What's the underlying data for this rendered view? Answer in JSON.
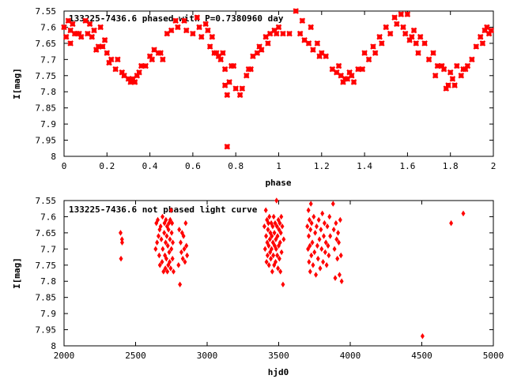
{
  "chart_data": [
    {
      "type": "scatter",
      "title": "133225-7436.6 phased with P=0.7380960 day",
      "xlabel": "phase",
      "ylabel": "I[mag]",
      "xlim": [
        0,
        2
      ],
      "ylim": [
        7.55,
        8
      ],
      "y_inverted": true,
      "marker": "star",
      "color": "#ff0000",
      "xticks": [
        0,
        0.2,
        0.4,
        0.6,
        0.8,
        1,
        1.2,
        1.4,
        1.6,
        1.8,
        2
      ],
      "xtick_labels": [
        "0",
        "0.2",
        "0.4",
        "0.6",
        "0.8",
        "1",
        "1.2",
        "1.4",
        "1.6",
        "1.8",
        "2"
      ],
      "yticks": [
        7.55,
        7.6,
        7.65,
        7.7,
        7.75,
        7.8,
        7.85,
        7.9,
        7.95,
        8
      ],
      "ytick_labels": [
        "7.55",
        "7.6",
        "7.65",
        "7.7",
        "7.75",
        "7.8",
        "7.85",
        "7.9",
        "7.95",
        "8"
      ],
      "points": [
        [
          0.0,
          7.6
        ],
        [
          0.01,
          7.63
        ],
        [
          0.02,
          7.58
        ],
        [
          0.03,
          7.61
        ],
        [
          0.03,
          7.65
        ],
        [
          0.04,
          7.59
        ],
        [
          0.05,
          7.62
        ],
        [
          0.06,
          7.62
        ],
        [
          0.07,
          7.62
        ],
        [
          0.08,
          7.63
        ],
        [
          0.1,
          7.58
        ],
        [
          0.11,
          7.62
        ],
        [
          0.12,
          7.59
        ],
        [
          0.13,
          7.63
        ],
        [
          0.14,
          7.61
        ],
        [
          0.15,
          7.67
        ],
        [
          0.16,
          7.66
        ],
        [
          0.17,
          7.6
        ],
        [
          0.18,
          7.66
        ],
        [
          0.19,
          7.64
        ],
        [
          0.2,
          7.68
        ],
        [
          0.21,
          7.71
        ],
        [
          0.22,
          7.7
        ],
        [
          0.24,
          7.73
        ],
        [
          0.25,
          7.7
        ],
        [
          0.27,
          7.74
        ],
        [
          0.28,
          7.75
        ],
        [
          0.3,
          7.76
        ],
        [
          0.31,
          7.77
        ],
        [
          0.32,
          7.76
        ],
        [
          0.33,
          7.77
        ],
        [
          0.34,
          7.75
        ],
        [
          0.35,
          7.74
        ],
        [
          0.36,
          7.72
        ],
        [
          0.38,
          7.72
        ],
        [
          0.4,
          7.69
        ],
        [
          0.41,
          7.7
        ],
        [
          0.42,
          7.67
        ],
        [
          0.44,
          7.68
        ],
        [
          0.45,
          7.68
        ],
        [
          0.46,
          7.7
        ],
        [
          0.48,
          7.62
        ],
        [
          0.5,
          7.61
        ],
        [
          0.52,
          7.58
        ],
        [
          0.53,
          7.6
        ],
        [
          0.56,
          7.58
        ],
        [
          0.57,
          7.61
        ],
        [
          0.6,
          7.62
        ],
        [
          0.62,
          7.57
        ],
        [
          0.63,
          7.6
        ],
        [
          0.64,
          7.63
        ],
        [
          0.66,
          7.59
        ],
        [
          0.67,
          7.61
        ],
        [
          0.68,
          7.66
        ],
        [
          0.69,
          7.63
        ],
        [
          0.7,
          7.68
        ],
        [
          0.71,
          7.68
        ],
        [
          0.72,
          7.69
        ],
        [
          0.73,
          7.7
        ],
        [
          0.74,
          7.68
        ],
        [
          0.75,
          7.73
        ],
        [
          0.75,
          7.78
        ],
        [
          0.76,
          7.81
        ],
        [
          0.76,
          7.97
        ],
        [
          0.77,
          7.77
        ],
        [
          0.78,
          7.72
        ],
        [
          0.79,
          7.72
        ],
        [
          0.8,
          7.79
        ],
        [
          0.82,
          7.81
        ],
        [
          0.83,
          7.79
        ],
        [
          0.85,
          7.75
        ],
        [
          0.86,
          7.73
        ],
        [
          0.87,
          7.73
        ],
        [
          0.88,
          7.69
        ],
        [
          0.9,
          7.68
        ],
        [
          0.91,
          7.66
        ],
        [
          0.92,
          7.67
        ],
        [
          0.94,
          7.63
        ],
        [
          0.95,
          7.65
        ],
        [
          0.96,
          7.62
        ],
        [
          0.98,
          7.61
        ],
        [
          0.99,
          7.62
        ],
        [
          1.0,
          7.6
        ],
        [
          1.02,
          7.62
        ],
        [
          1.05,
          7.62
        ],
        [
          1.08,
          7.55
        ],
        [
          1.1,
          7.62
        ],
        [
          1.11,
          7.58
        ],
        [
          1.12,
          7.64
        ],
        [
          1.14,
          7.65
        ],
        [
          1.15,
          7.6
        ],
        [
          1.16,
          7.67
        ],
        [
          1.18,
          7.65
        ],
        [
          1.19,
          7.69
        ],
        [
          1.2,
          7.68
        ],
        [
          1.22,
          7.69
        ],
        [
          1.25,
          7.73
        ],
        [
          1.27,
          7.74
        ],
        [
          1.28,
          7.72
        ],
        [
          1.29,
          7.75
        ],
        [
          1.3,
          7.77
        ],
        [
          1.31,
          7.76
        ],
        [
          1.32,
          7.76
        ],
        [
          1.33,
          7.74
        ],
        [
          1.34,
          7.75
        ],
        [
          1.35,
          7.77
        ],
        [
          1.37,
          7.73
        ],
        [
          1.39,
          7.73
        ],
        [
          1.4,
          7.68
        ],
        [
          1.42,
          7.7
        ],
        [
          1.44,
          7.66
        ],
        [
          1.45,
          7.68
        ],
        [
          1.47,
          7.63
        ],
        [
          1.48,
          7.65
        ],
        [
          1.5,
          7.6
        ],
        [
          1.52,
          7.62
        ],
        [
          1.54,
          7.57
        ],
        [
          1.55,
          7.59
        ],
        [
          1.57,
          7.56
        ],
        [
          1.58,
          7.6
        ],
        [
          1.59,
          7.62
        ],
        [
          1.6,
          7.56
        ],
        [
          1.61,
          7.64
        ],
        [
          1.62,
          7.63
        ],
        [
          1.63,
          7.61
        ],
        [
          1.64,
          7.65
        ],
        [
          1.65,
          7.68
        ],
        [
          1.66,
          7.63
        ],
        [
          1.68,
          7.65
        ],
        [
          1.7,
          7.7
        ],
        [
          1.72,
          7.68
        ],
        [
          1.73,
          7.75
        ],
        [
          1.74,
          7.72
        ],
        [
          1.76,
          7.72
        ],
        [
          1.77,
          7.73
        ],
        [
          1.78,
          7.79
        ],
        [
          1.79,
          7.78
        ],
        [
          1.8,
          7.74
        ],
        [
          1.81,
          7.76
        ],
        [
          1.82,
          7.78
        ],
        [
          1.83,
          7.72
        ],
        [
          1.85,
          7.75
        ],
        [
          1.86,
          7.73
        ],
        [
          1.87,
          7.73
        ],
        [
          1.88,
          7.72
        ],
        [
          1.9,
          7.7
        ],
        [
          1.92,
          7.66
        ],
        [
          1.94,
          7.63
        ],
        [
          1.95,
          7.65
        ],
        [
          1.96,
          7.61
        ],
        [
          1.97,
          7.6
        ],
        [
          1.98,
          7.62
        ],
        [
          1.99,
          7.61
        ]
      ]
    },
    {
      "type": "scatter",
      "title": "133225-7436.6 not phased light curve",
      "xlabel": "hjd0",
      "ylabel": "I[mag]",
      "xlim": [
        2000,
        5000
      ],
      "ylim": [
        7.55,
        8
      ],
      "y_inverted": true,
      "marker": "diamond",
      "color": "#ff0000",
      "xticks": [
        2000,
        2500,
        3000,
        3500,
        4000,
        4500,
        5000
      ],
      "xtick_labels": [
        "2000",
        "2500",
        "3000",
        "3500",
        "4000",
        "4500",
        "5000"
      ],
      "yticks": [
        7.55,
        7.6,
        7.65,
        7.7,
        7.75,
        7.8,
        7.85,
        7.9,
        7.95,
        8
      ],
      "ytick_labels": [
        "7.55",
        "7.6",
        "7.65",
        "7.7",
        "7.75",
        "7.8",
        "7.85",
        "7.9",
        "7.95",
        "8"
      ],
      "points": [
        [
          2395,
          7.65
        ],
        [
          2398,
          7.73
        ],
        [
          2405,
          7.67
        ],
        [
          2406,
          7.68
        ],
        [
          2640,
          7.7
        ],
        [
          2645,
          7.62
        ],
        [
          2650,
          7.68
        ],
        [
          2655,
          7.61
        ],
        [
          2660,
          7.66
        ],
        [
          2665,
          7.72
        ],
        [
          2668,
          7.64
        ],
        [
          2670,
          7.75
        ],
        [
          2675,
          7.63
        ],
        [
          2680,
          7.67
        ],
        [
          2685,
          7.74
        ],
        [
          2688,
          7.6
        ],
        [
          2690,
          7.7
        ],
        [
          2695,
          7.77
        ],
        [
          2700,
          7.65
        ],
        [
          2702,
          7.62
        ],
        [
          2705,
          7.72
        ],
        [
          2708,
          7.76
        ],
        [
          2710,
          7.68
        ],
        [
          2712,
          7.61
        ],
        [
          2715,
          7.73
        ],
        [
          2718,
          7.66
        ],
        [
          2720,
          7.63
        ],
        [
          2722,
          7.77
        ],
        [
          2725,
          7.69
        ],
        [
          2728,
          7.75
        ],
        [
          2730,
          7.64
        ],
        [
          2733,
          7.62
        ],
        [
          2735,
          7.71
        ],
        [
          2738,
          7.74
        ],
        [
          2740,
          7.67
        ],
        [
          2742,
          7.61
        ],
        [
          2745,
          7.76
        ],
        [
          2748,
          7.58
        ],
        [
          2750,
          7.7
        ],
        [
          2752,
          7.65
        ],
        [
          2755,
          7.62
        ],
        [
          2758,
          7.73
        ],
        [
          2760,
          7.68
        ],
        [
          2765,
          7.77
        ],
        [
          2800,
          7.75
        ],
        [
          2805,
          7.64
        ],
        [
          2810,
          7.81
        ],
        [
          2815,
          7.68
        ],
        [
          2820,
          7.71
        ],
        [
          2825,
          7.65
        ],
        [
          2830,
          7.73
        ],
        [
          2835,
          7.66
        ],
        [
          2840,
          7.7
        ],
        [
          2845,
          7.74
        ],
        [
          2850,
          7.62
        ],
        [
          2855,
          7.69
        ],
        [
          2860,
          7.72
        ],
        [
          3400,
          7.63
        ],
        [
          3405,
          7.7
        ],
        [
          3410,
          7.58
        ],
        [
          3412,
          7.66
        ],
        [
          3415,
          7.74
        ],
        [
          3418,
          7.61
        ],
        [
          3420,
          7.68
        ],
        [
          3422,
          7.72
        ],
        [
          3425,
          7.64
        ],
        [
          3428,
          7.62
        ],
        [
          3430,
          7.69
        ],
        [
          3432,
          7.75
        ],
        [
          3435,
          7.6
        ],
        [
          3438,
          7.67
        ],
        [
          3440,
          7.71
        ],
        [
          3442,
          7.65
        ],
        [
          3445,
          7.73
        ],
        [
          3448,
          7.62
        ],
        [
          3450,
          7.7
        ],
        [
          3452,
          7.66
        ],
        [
          3455,
          7.77
        ],
        [
          3458,
          7.63
        ],
        [
          3460,
          7.68
        ],
        [
          3462,
          7.72
        ],
        [
          3465,
          7.6
        ],
        [
          3468,
          7.75
        ],
        [
          3470,
          7.65
        ],
        [
          3472,
          7.69
        ],
        [
          3475,
          7.62
        ],
        [
          3478,
          7.74
        ],
        [
          3480,
          7.67
        ],
        [
          3482,
          7.7
        ],
        [
          3485,
          7.55
        ],
        [
          3488,
          7.63
        ],
        [
          3490,
          7.72
        ],
        [
          3492,
          7.66
        ],
        [
          3495,
          7.76
        ],
        [
          3498,
          7.61
        ],
        [
          3500,
          7.69
        ],
        [
          3502,
          7.64
        ],
        [
          3505,
          7.73
        ],
        [
          3508,
          7.62
        ],
        [
          3510,
          7.68
        ],
        [
          3512,
          7.77
        ],
        [
          3515,
          7.65
        ],
        [
          3518,
          7.6
        ],
        [
          3520,
          7.71
        ],
        [
          3525,
          7.63
        ],
        [
          3530,
          7.81
        ],
        [
          3535,
          7.67
        ],
        [
          3700,
          7.63
        ],
        [
          3705,
          7.7
        ],
        [
          3708,
          7.58
        ],
        [
          3710,
          7.66
        ],
        [
          3712,
          7.74
        ],
        [
          3715,
          7.61
        ],
        [
          3718,
          7.69
        ],
        [
          3720,
          7.77
        ],
        [
          3722,
          7.64
        ],
        [
          3725,
          7.56
        ],
        [
          3728,
          7.72
        ],
        [
          3730,
          7.62
        ],
        [
          3735,
          7.68
        ],
        [
          3740,
          7.75
        ],
        [
          3745,
          7.6
        ],
        [
          3750,
          7.71
        ],
        [
          3755,
          7.65
        ],
        [
          3760,
          7.78
        ],
        [
          3765,
          7.63
        ],
        [
          3770,
          7.69
        ],
        [
          3775,
          7.73
        ],
        [
          3780,
          7.61
        ],
        [
          3785,
          7.67
        ],
        [
          3790,
          7.76
        ],
        [
          3795,
          7.64
        ],
        [
          3800,
          7.7
        ],
        [
          3805,
          7.59
        ],
        [
          3810,
          7.74
        ],
        [
          3815,
          7.66
        ],
        [
          3820,
          7.62
        ],
        [
          3825,
          7.71
        ],
        [
          3830,
          7.68
        ],
        [
          3835,
          7.75
        ],
        [
          3840,
          7.63
        ],
        [
          3845,
          7.69
        ],
        [
          3850,
          7.72
        ],
        [
          3855,
          7.6
        ],
        [
          3860,
          7.66
        ],
        [
          3880,
          7.56
        ],
        [
          3885,
          7.64
        ],
        [
          3890,
          7.7
        ],
        [
          3895,
          7.79
        ],
        [
          3900,
          7.62
        ],
        [
          3905,
          7.67
        ],
        [
          3910,
          7.73
        ],
        [
          3915,
          7.65
        ],
        [
          3920,
          7.68
        ],
        [
          3925,
          7.78
        ],
        [
          3930,
          7.61
        ],
        [
          3935,
          7.72
        ],
        [
          3940,
          7.8
        ],
        [
          4505,
          7.97
        ],
        [
          4705,
          7.62
        ],
        [
          4790,
          7.59
        ]
      ]
    }
  ]
}
